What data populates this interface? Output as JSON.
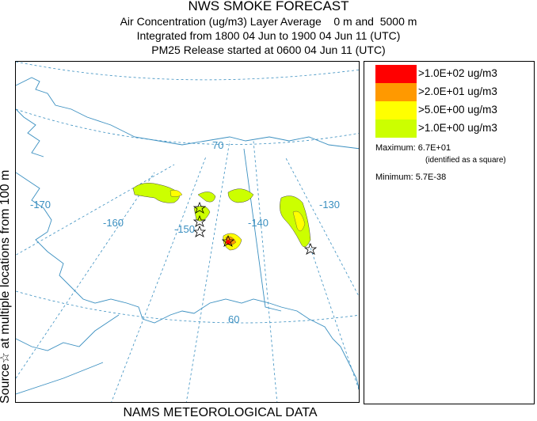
{
  "header": {
    "title": "NWS SMOKE FORECAST",
    "line2": "Air Concentration (ug/m3) Layer Average    0 m and  5000 m",
    "line3": "Integrated from 1800 04 Jun to 1900 04 Jun 11 (UTC)",
    "line4": "PM25 Release started at 0600 04 Jun 11 (UTC)"
  },
  "side_label": "Source☆ at multiple locations   from  100 m",
  "footer_label": "NAMS METEOROLOGICAL DATA",
  "map": {
    "graticule_labels": [
      "-170",
      "-160",
      "-150",
      "-140",
      "-130",
      "70",
      "60"
    ],
    "graticule_color": "#3a8fc0",
    "coast_color": "#3a8fc0"
  },
  "legend": {
    "items": [
      {
        "color": "#ff0000",
        "label": ">1.0E+02 ug/m3"
      },
      {
        "color": "#ff9900",
        "label": ">2.0E+01 ug/m3"
      },
      {
        "color": "#ffff00",
        "label": ">5.0E+00 ug/m3"
      },
      {
        "color": "#ccff00",
        "label": ">1.0E+00 ug/m3"
      }
    ],
    "maximum": "Maximum: 6.7E+01",
    "maximum_note": "(identified as a square)",
    "minimum": "Minimum: 5.7E-38"
  }
}
